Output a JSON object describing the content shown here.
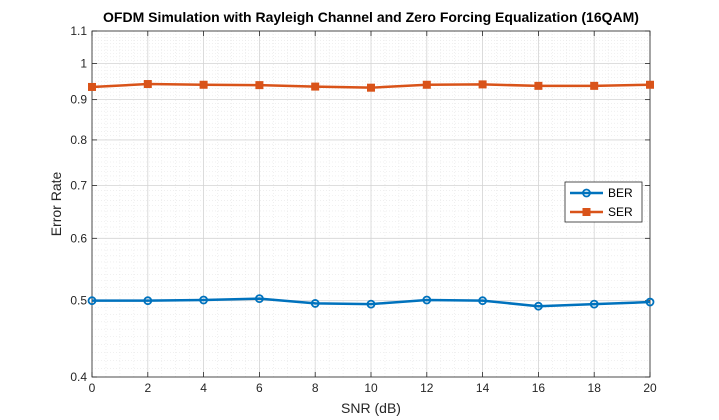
{
  "chart_data": {
    "type": "line",
    "title": "OFDM Simulation with Rayleigh Channel and Zero Forcing Equalization (16QAM)",
    "xlabel": "SNR (dB)",
    "ylabel": "Error Rate",
    "yscale": "log",
    "xlim": [
      0,
      20
    ],
    "ylim": [
      0.4,
      1.1
    ],
    "xticks": [
      0,
      2,
      4,
      6,
      8,
      10,
      12,
      14,
      16,
      18,
      20
    ],
    "xtick_labels": [
      "0",
      "2",
      "4",
      "6",
      "8",
      "10",
      "12",
      "14",
      "16",
      "18",
      "20"
    ],
    "yticks": [
      0.4,
      0.5,
      0.6,
      0.7,
      0.8,
      0.9,
      1,
      1.1
    ],
    "ytick_labels": [
      "0.4",
      "0.5",
      "0.6",
      "0.7",
      "0.8",
      "0.9",
      "1",
      "1.1"
    ],
    "grid": true,
    "legend_position": "right",
    "x": [
      0,
      2,
      4,
      6,
      8,
      10,
      12,
      14,
      16,
      18,
      20
    ],
    "series": [
      {
        "name": "BER",
        "color": "#0072BD",
        "marker": "circle",
        "values": [
          0.5,
          0.5,
          0.501,
          0.503,
          0.496,
          0.495,
          0.501,
          0.5,
          0.492,
          0.495,
          0.498
        ]
      },
      {
        "name": "SER",
        "color": "#D95319",
        "marker": "square",
        "values": [
          0.934,
          0.942,
          0.94,
          0.939,
          0.935,
          0.932,
          0.94,
          0.941,
          0.937,
          0.937,
          0.94
        ]
      }
    ]
  }
}
